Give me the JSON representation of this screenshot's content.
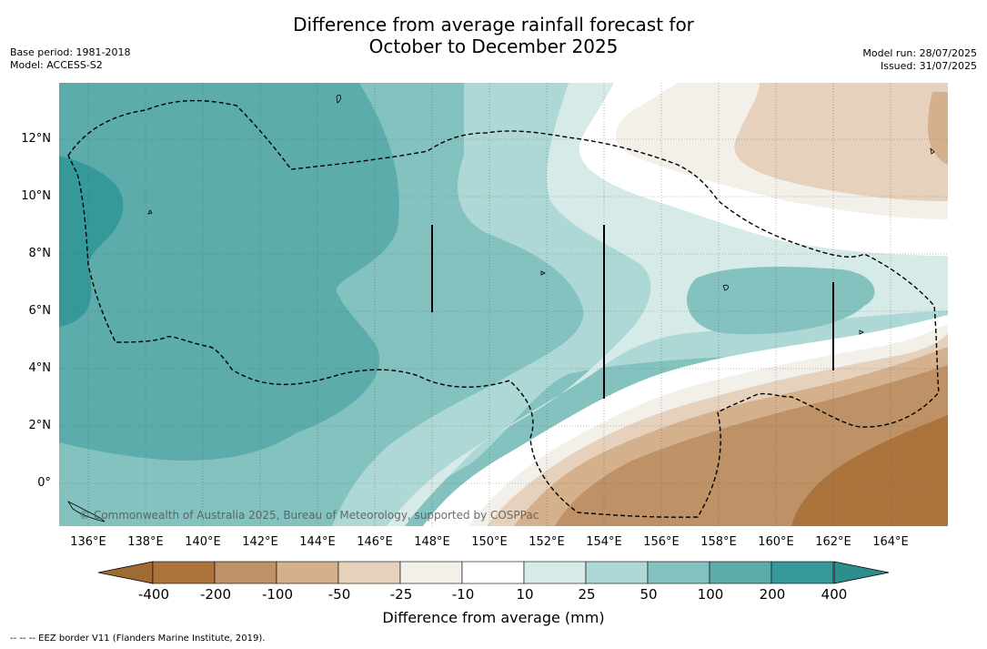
{
  "title": {
    "line1": "Difference from average rainfall forecast for",
    "line2": "October to December 2025"
  },
  "meta_left": {
    "base_period": "Base period: 1981-2018",
    "model": "Model: ACCESS-S2"
  },
  "meta_right": {
    "model_run": "Model run: 28/07/2025",
    "issued": "Issued: 31/07/2025"
  },
  "map": {
    "lat_labels": [
      "12°N",
      "10°N",
      "8°N",
      "6°N",
      "4°N",
      "2°N",
      "0°"
    ],
    "lon_labels": [
      "136°E",
      "138°E",
      "140°E",
      "142°E",
      "144°E",
      "146°E",
      "148°E",
      "150°E",
      "152°E",
      "154°E",
      "156°E",
      "158°E",
      "160°E",
      "162°E",
      "164°E"
    ],
    "copyright": "© Commonwealth of Australia 2025, Bureau of Meteorology, supported by COSPPac"
  },
  "colorbar": {
    "ticks": [
      "-400",
      "-200",
      "-100",
      "-50",
      "-25",
      "-10",
      "10",
      "25",
      "50",
      "100",
      "200",
      "400"
    ],
    "colors": {
      "below_min": "#a06a34",
      "bins": [
        "#ac743c",
        "#bf9166",
        "#d4b08c",
        "#e6d1bd",
        "#f3efe9",
        "#ffffff",
        "#d6eae8",
        "#aed8d6",
        "#84c2c0",
        "#5bacab",
        "#35999a"
      ],
      "above_max": "#2c8f8e"
    },
    "title": "Difference from average (mm)"
  },
  "footnote": "-- -- -- EEZ border V11 (Flanders Marine Institute, 2019)."
}
